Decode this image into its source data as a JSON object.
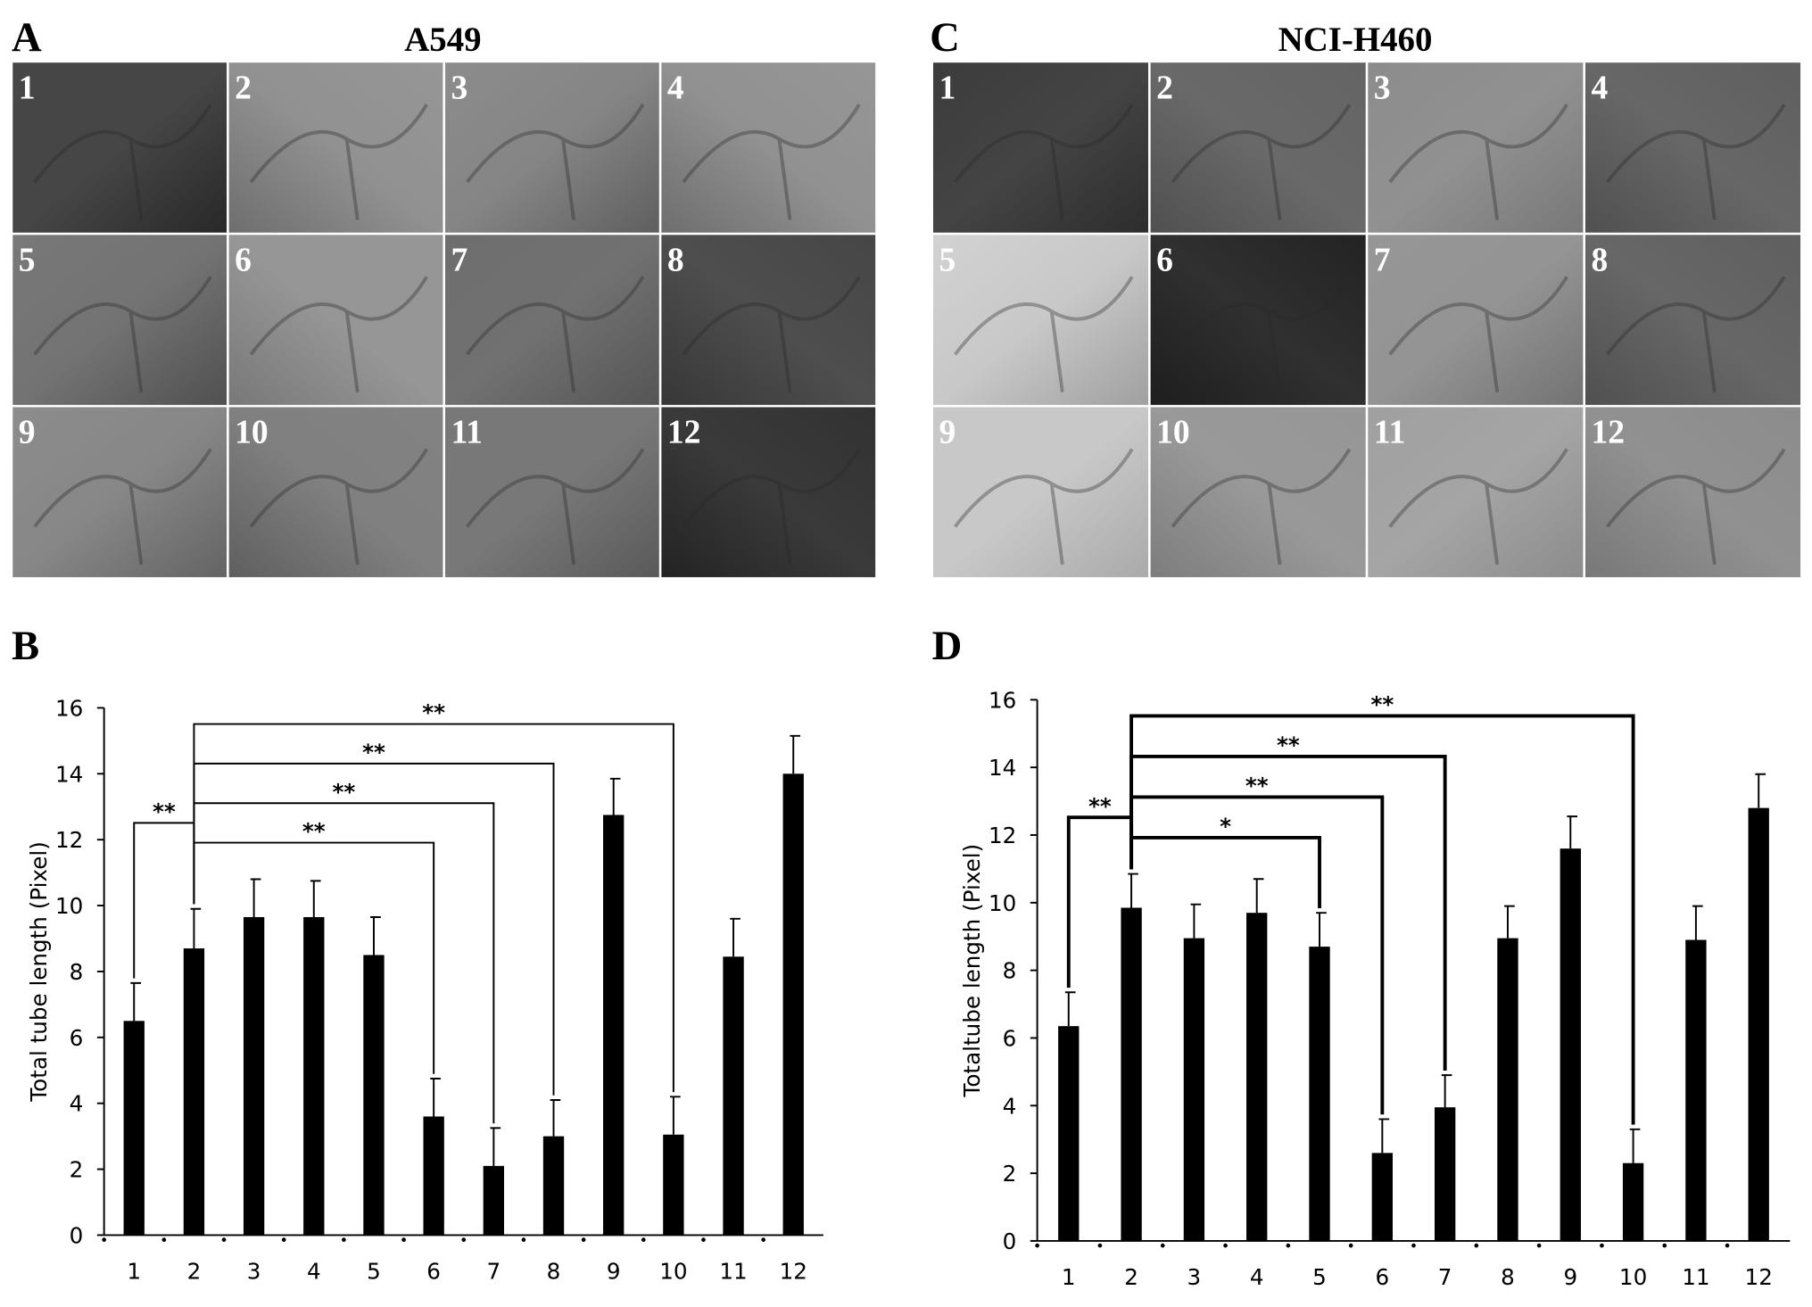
{
  "panels": [
    {
      "letter": "A",
      "title": "A549",
      "cells": [
        "1",
        "2",
        "3",
        "4",
        "5",
        "6",
        "7",
        "8",
        "9",
        "10",
        "11",
        "12"
      ]
    },
    {
      "letter": "C",
      "title": "NCI-H460",
      "cells": [
        "1",
        "2",
        "3",
        "4",
        "5",
        "6",
        "7",
        "8",
        "9",
        "10",
        "11",
        "12"
      ]
    }
  ],
  "chart_data": [
    {
      "type": "bar",
      "letter": "B",
      "y_label": "Total tube length (Pixel)",
      "categories": [
        "1",
        "2",
        "3",
        "4",
        "5",
        "6",
        "7",
        "8",
        "9",
        "10",
        "11",
        "12"
      ],
      "values": [
        6.5,
        8.7,
        9.65,
        9.65,
        8.5,
        3.6,
        2.1,
        3.0,
        12.75,
        3.05,
        8.45,
        14.0
      ],
      "errors": [
        1.15,
        1.2,
        1.15,
        1.1,
        1.15,
        1.15,
        1.15,
        1.1,
        1.1,
        1.15,
        1.15,
        1.15
      ],
      "color": "#000000",
      "ylim": [
        0,
        16
      ],
      "yticks": [
        0,
        2,
        4,
        6,
        8,
        10,
        12,
        14,
        16
      ],
      "grid": false,
      "annotations": [
        {
          "label": "**",
          "between": [
            "1",
            "2"
          ]
        },
        {
          "label": "**",
          "between": [
            "2",
            "6"
          ]
        },
        {
          "label": "**",
          "between": [
            "2",
            "7"
          ]
        },
        {
          "label": "**",
          "between": [
            "2",
            "8"
          ]
        },
        {
          "label": "**",
          "between": [
            "2",
            "10"
          ]
        }
      ]
    },
    {
      "type": "bar",
      "letter": "D",
      "y_label": "Totaltube length (Pixel)",
      "categories": [
        "1",
        "2",
        "3",
        "4",
        "5",
        "6",
        "7",
        "8",
        "9",
        "10",
        "11",
        "12"
      ],
      "values": [
        6.35,
        9.85,
        8.95,
        9.7,
        8.7,
        2.6,
        3.95,
        8.95,
        11.6,
        2.3,
        8.9,
        12.8
      ],
      "errors": [
        1.0,
        1.0,
        1.0,
        1.0,
        1.0,
        1.0,
        0.95,
        0.95,
        0.95,
        1.0,
        1.0,
        1.0
      ],
      "color": "#000000",
      "ylim": [
        0,
        16
      ],
      "yticks": [
        0,
        2,
        4,
        6,
        8,
        10,
        12,
        14,
        16
      ],
      "grid": false,
      "annotations": [
        {
          "label": "**",
          "between": [
            "1",
            "2"
          ]
        },
        {
          "label": "*",
          "between": [
            "2",
            "5"
          ]
        },
        {
          "label": "**",
          "between": [
            "2",
            "6"
          ]
        },
        {
          "label": "**",
          "between": [
            "2",
            "7"
          ]
        },
        {
          "label": "**",
          "between": [
            "2",
            "10"
          ]
        }
      ]
    }
  ]
}
